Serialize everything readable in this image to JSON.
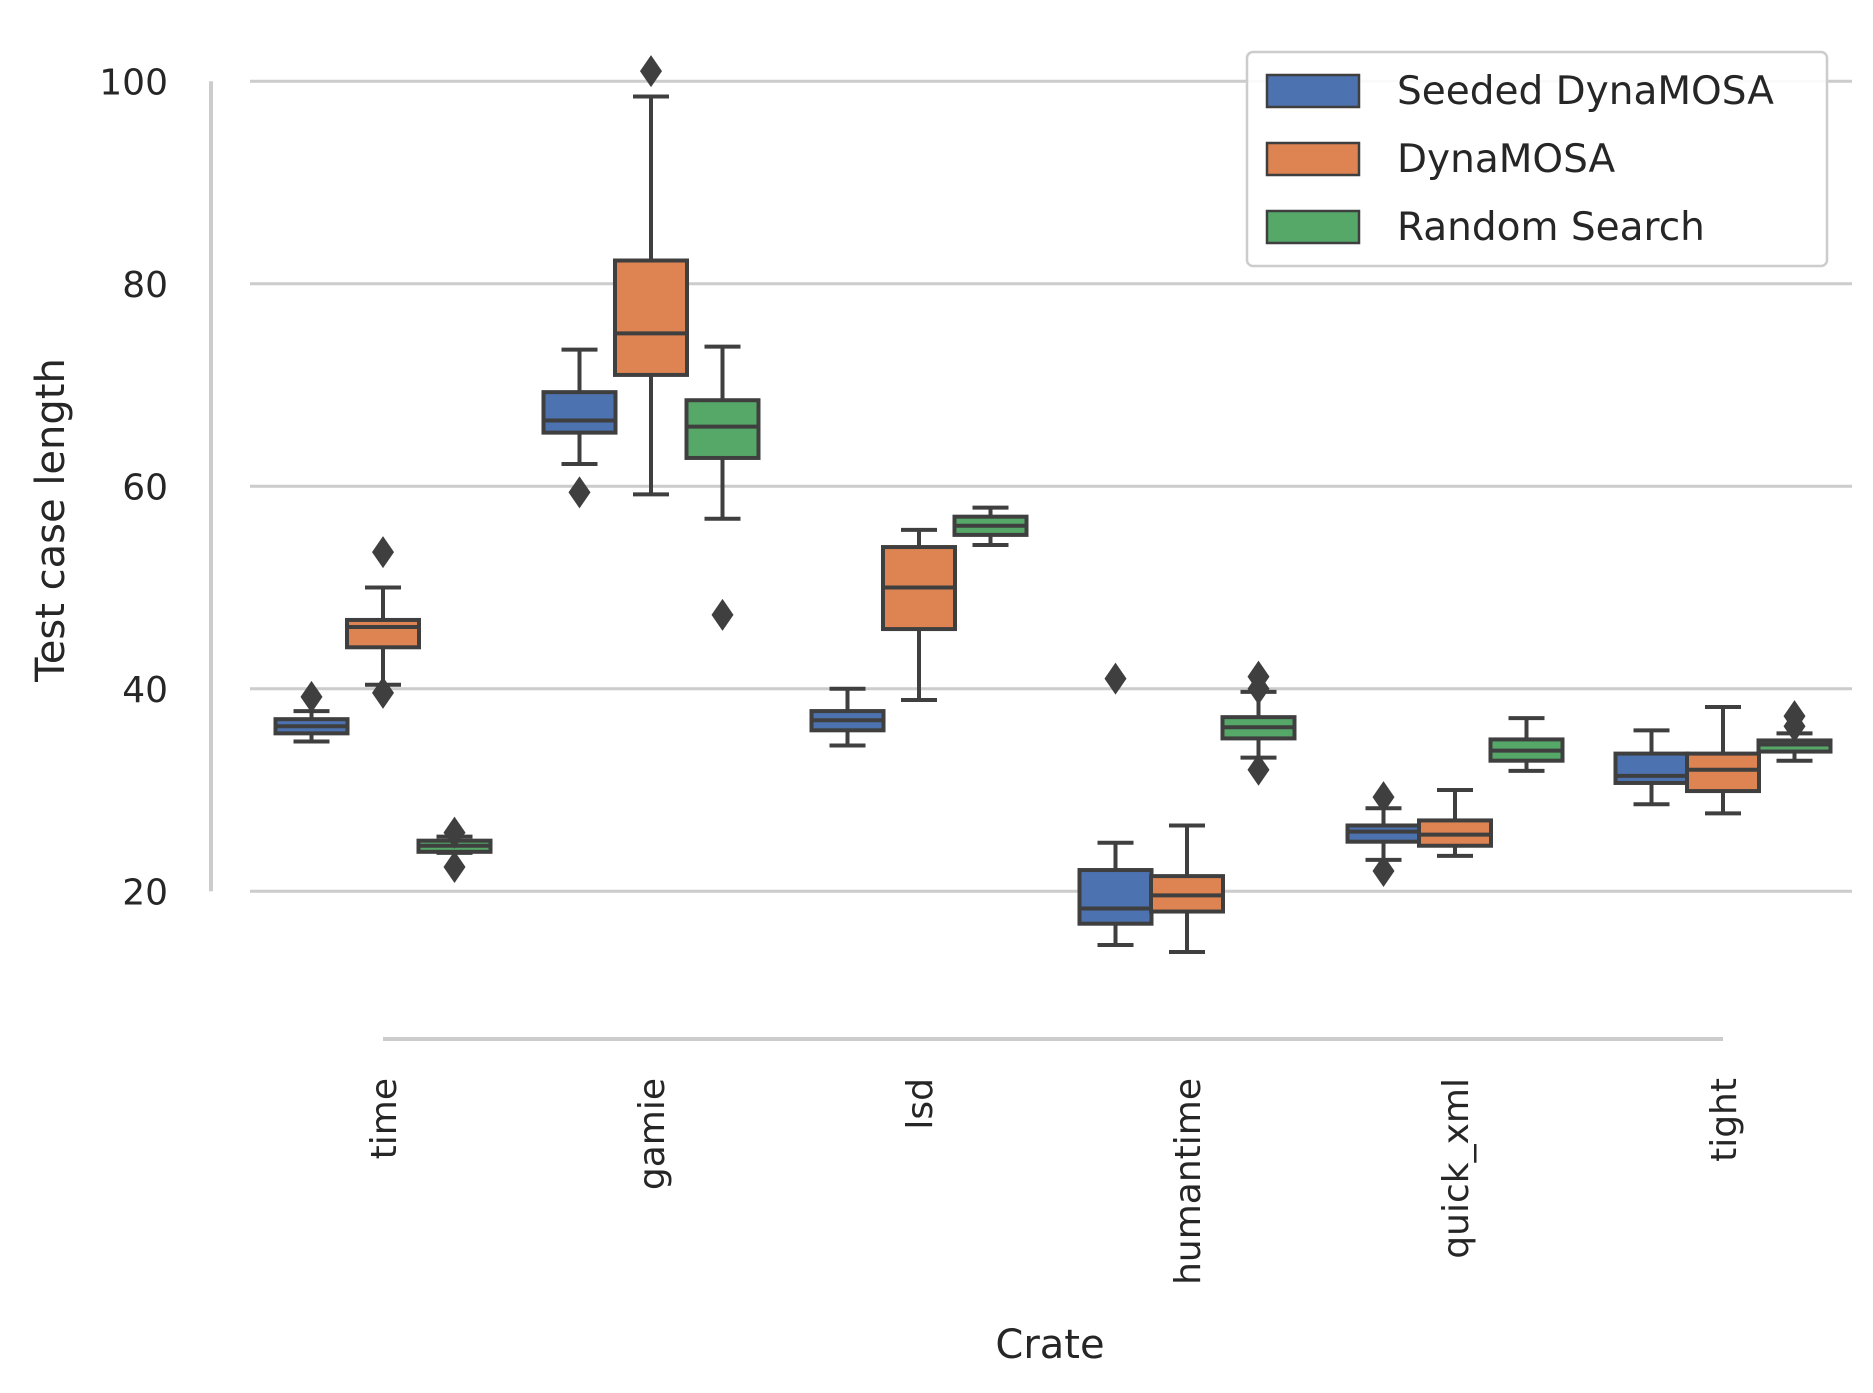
{
  "chart_data": {
    "type": "box",
    "xlabel": "Crate",
    "ylabel": "Test case length",
    "categories": [
      "time",
      "gamie",
      "lsd",
      "humantime",
      "quick_xml",
      "tight"
    ],
    "yticks": [
      20,
      40,
      60,
      80,
      100
    ],
    "ylim": [
      7,
      103
    ],
    "grid": "horizontal",
    "legend_position": "top-right",
    "series": [
      {
        "name": "Seeded DynaMOSA",
        "color": "#4c72b0",
        "boxes": [
          {
            "whislo": 34.8,
            "q1": 35.6,
            "med": 36.3,
            "q3": 37.0,
            "whishi": 37.8,
            "fliers": [
              39.2
            ]
          },
          {
            "whislo": 62.2,
            "q1": 65.3,
            "med": 66.5,
            "q3": 69.3,
            "whishi": 73.5,
            "fliers": [
              59.4
            ]
          },
          {
            "whislo": 34.4,
            "q1": 35.9,
            "med": 36.9,
            "q3": 37.8,
            "whishi": 40.0,
            "fliers": []
          },
          {
            "whislo": 14.7,
            "q1": 16.8,
            "med": 18.3,
            "q3": 22.1,
            "whishi": 24.8,
            "fliers": [
              41.0
            ]
          },
          {
            "whislo": 23.1,
            "q1": 24.9,
            "med": 25.9,
            "q3": 26.5,
            "whishi": 28.2,
            "fliers": [
              22.0,
              29.3
            ]
          },
          {
            "whislo": 28.6,
            "q1": 30.7,
            "med": 31.4,
            "q3": 33.6,
            "whishi": 35.9,
            "fliers": []
          }
        ]
      },
      {
        "name": "DynaMOSA",
        "color": "#dd8452",
        "boxes": [
          {
            "whislo": 40.4,
            "q1": 44.1,
            "med": 46.1,
            "q3": 46.8,
            "whishi": 50.0,
            "fliers": [
              39.6,
              53.5
            ]
          },
          {
            "whislo": 59.2,
            "q1": 71.0,
            "med": 75.1,
            "q3": 82.3,
            "whishi": 98.5,
            "fliers": [
              101.0
            ]
          },
          {
            "whislo": 38.9,
            "q1": 45.9,
            "med": 50.0,
            "q3": 54.0,
            "whishi": 55.7,
            "fliers": []
          },
          {
            "whislo": 14.0,
            "q1": 18.0,
            "med": 19.6,
            "q3": 21.5,
            "whishi": 26.5,
            "fliers": []
          },
          {
            "whislo": 23.5,
            "q1": 24.5,
            "med": 25.6,
            "q3": 27.0,
            "whishi": 30.0,
            "fliers": []
          },
          {
            "whislo": 27.7,
            "q1": 29.9,
            "med": 32.0,
            "q3": 33.6,
            "whishi": 38.2,
            "fliers": []
          }
        ]
      },
      {
        "name": "Random Search",
        "color": "#55a868",
        "boxes": [
          {
            "whislo": 23.8,
            "q1": 23.9,
            "med": 24.5,
            "q3": 25.0,
            "whishi": 25.4,
            "fliers": [
              22.4,
              25.8
            ]
          },
          {
            "whislo": 56.8,
            "q1": 62.8,
            "med": 65.9,
            "q3": 68.5,
            "whishi": 73.8,
            "fliers": [
              47.3
            ]
          },
          {
            "whislo": 54.2,
            "q1": 55.2,
            "med": 56.1,
            "q3": 57.0,
            "whishi": 57.9,
            "fliers": []
          },
          {
            "whislo": 33.2,
            "q1": 35.1,
            "med": 36.2,
            "q3": 37.2,
            "whishi": 39.7,
            "fliers": [
              32.0,
              40.0,
              41.2
            ]
          },
          {
            "whislo": 31.9,
            "q1": 32.9,
            "med": 33.9,
            "q3": 35.0,
            "whishi": 37.1,
            "fliers": []
          },
          {
            "whislo": 32.9,
            "q1": 33.8,
            "med": 34.5,
            "q3": 34.9,
            "whishi": 35.6,
            "fliers": [
              36.3,
              37.3
            ]
          }
        ]
      }
    ]
  }
}
